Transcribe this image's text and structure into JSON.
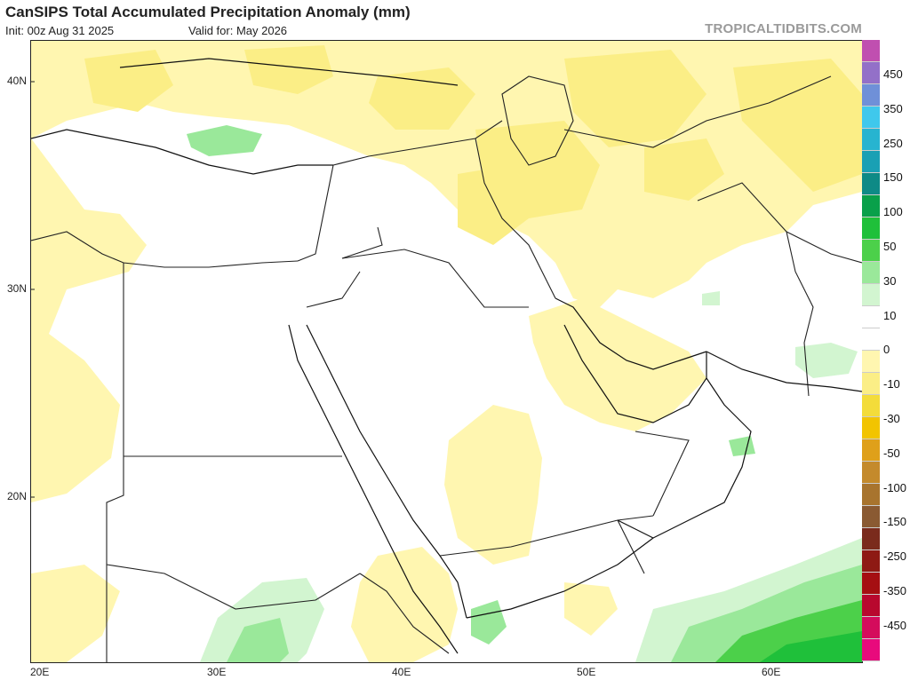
{
  "header": {
    "title": "CanSIPS Total Accumulated Precipitation Anomaly (mm)",
    "init": "Init: 00z Aug 31 2025",
    "valid": "Valid for: May 2026",
    "brand": "TROPICALTIDBITS.COM"
  },
  "axes": {
    "lat_labels": [
      "40N",
      "30N",
      "20N"
    ],
    "lon_labels": [
      "20E",
      "30E",
      "40E",
      "50E",
      "60E"
    ]
  },
  "colorbar": {
    "labels": [
      "450",
      "350",
      "250",
      "150",
      "100",
      "50",
      "30",
      "10",
      "0",
      "-10",
      "-30",
      "-50",
      "-100",
      "-150",
      "-250",
      "-350",
      "-450"
    ],
    "colors": [
      "#c04fb0",
      "#9370c8",
      "#6f90d8",
      "#3fc8ec",
      "#27b4d0",
      "#1aa0b4",
      "#0e8a86",
      "#09a04a",
      "#1fc03a",
      "#4cd04a",
      "#9ae89a",
      "#d2f5d0",
      "#ffffff",
      "#ffffff",
      "#fff6b0",
      "#fbee86",
      "#f3dc3a",
      "#f2c400",
      "#dfa01a",
      "#c48a2c",
      "#a8742e",
      "#8a5a32",
      "#7a2b1c",
      "#8e1a14",
      "#a50f12",
      "#b8082e",
      "#d40c5c",
      "#e80a7c"
    ]
  }
}
